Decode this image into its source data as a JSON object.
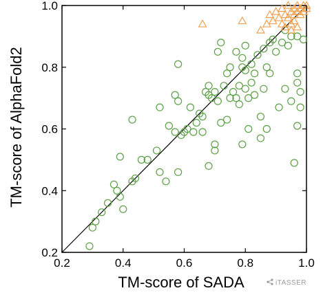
{
  "chart_data": {
    "type": "scatter",
    "xlabel": "TM-score of SADA",
    "ylabel": "TM-score of AlphaFold2",
    "xlim": [
      0.2,
      1.0
    ],
    "ylim": [
      0.2,
      1.0
    ],
    "xticks": [
      "0.2",
      "0.4",
      "0.6",
      "0.8",
      "1.0"
    ],
    "yticks": [
      "0.2",
      "0.4",
      "0.6",
      "0.8",
      "1.0"
    ],
    "diagonal_line": true,
    "grid": false,
    "legend": "none",
    "colors": {
      "green_series": "#5aa044",
      "orange_series": "#f0a050"
    },
    "series": [
      {
        "marker": "circle",
        "color": "#5aa044",
        "points": [
          [
            0.29,
            0.22
          ],
          [
            0.3,
            0.28
          ],
          [
            0.31,
            0.3
          ],
          [
            0.33,
            0.33
          ],
          [
            0.35,
            0.36
          ],
          [
            0.37,
            0.42
          ],
          [
            0.38,
            0.4
          ],
          [
            0.39,
            0.51
          ],
          [
            0.39,
            0.38
          ],
          [
            0.4,
            0.34
          ],
          [
            0.43,
            0.43
          ],
          [
            0.43,
            0.63
          ],
          [
            0.44,
            0.44
          ],
          [
            0.46,
            0.5
          ],
          [
            0.48,
            0.5
          ],
          [
            0.51,
            0.53
          ],
          [
            0.52,
            0.46
          ],
          [
            0.52,
            0.67
          ],
          [
            0.54,
            0.43
          ],
          [
            0.55,
            0.61
          ],
          [
            0.57,
            0.71
          ],
          [
            0.57,
            0.59
          ],
          [
            0.58,
            0.81
          ],
          [
            0.58,
            0.69
          ],
          [
            0.58,
            0.46
          ],
          [
            0.59,
            0.58
          ],
          [
            0.6,
            0.59
          ],
          [
            0.61,
            0.6
          ],
          [
            0.62,
            0.67
          ],
          [
            0.63,
            0.59
          ],
          [
            0.64,
            0.62
          ],
          [
            0.65,
            0.65
          ],
          [
            0.66,
            0.64
          ],
          [
            0.66,
            0.59
          ],
          [
            0.67,
            0.72
          ],
          [
            0.68,
            0.71
          ],
          [
            0.68,
            0.74
          ],
          [
            0.68,
            0.48
          ],
          [
            0.69,
            0.7
          ],
          [
            0.7,
            0.53
          ],
          [
            0.7,
            0.55
          ],
          [
            0.7,
            0.72
          ],
          [
            0.71,
            0.69
          ],
          [
            0.71,
            0.85
          ],
          [
            0.72,
            0.62
          ],
          [
            0.72,
            0.88
          ],
          [
            0.73,
            0.74
          ],
          [
            0.74,
            0.78
          ],
          [
            0.74,
            0.63
          ],
          [
            0.75,
            0.8
          ],
          [
            0.75,
            0.7
          ],
          [
            0.76,
            0.72
          ],
          [
            0.77,
            0.7
          ],
          [
            0.77,
            0.85
          ],
          [
            0.78,
            0.74
          ],
          [
            0.78,
            0.68
          ],
          [
            0.79,
            0.8
          ],
          [
            0.79,
            0.83
          ],
          [
            0.79,
            0.55
          ],
          [
            0.8,
            0.73
          ],
          [
            0.8,
            0.79
          ],
          [
            0.8,
            0.87
          ],
          [
            0.81,
            0.7
          ],
          [
            0.81,
            0.6
          ],
          [
            0.82,
            0.75
          ],
          [
            0.82,
            0.81
          ],
          [
            0.83,
            0.78
          ],
          [
            0.83,
            0.71
          ],
          [
            0.84,
            0.84
          ],
          [
            0.85,
            0.57
          ],
          [
            0.85,
            0.64
          ],
          [
            0.86,
            0.73
          ],
          [
            0.86,
            0.86
          ],
          [
            0.87,
            0.6
          ],
          [
            0.87,
            0.8
          ],
          [
            0.88,
            0.78
          ],
          [
            0.88,
            0.88
          ],
          [
            0.89,
            0.89
          ],
          [
            0.9,
            0.85
          ],
          [
            0.91,
            0.67
          ],
          [
            0.92,
            0.88
          ],
          [
            0.93,
            0.92
          ],
          [
            0.93,
            0.73
          ],
          [
            0.94,
            0.87
          ],
          [
            0.95,
            0.69
          ],
          [
            0.95,
            0.9
          ],
          [
            0.96,
            0.49
          ],
          [
            0.97,
            0.75
          ],
          [
            0.97,
            0.78
          ],
          [
            0.97,
            0.9
          ],
          [
            0.97,
            0.61
          ],
          [
            0.98,
            0.67
          ],
          [
            0.98,
            0.72
          ],
          [
            0.99,
            0.89
          ]
        ]
      },
      {
        "marker": "triangle",
        "color": "#f0a050",
        "points": [
          [
            0.66,
            0.94
          ],
          [
            0.79,
            0.95
          ],
          [
            0.85,
            0.92
          ],
          [
            0.87,
            0.94
          ],
          [
            0.88,
            0.97
          ],
          [
            0.89,
            0.95
          ],
          [
            0.9,
            0.98
          ],
          [
            0.91,
            0.96
          ],
          [
            0.92,
            0.94
          ],
          [
            0.92,
            0.99
          ],
          [
            0.93,
            0.97
          ],
          [
            0.93,
            0.93
          ],
          [
            0.94,
            1.0
          ],
          [
            0.94,
            0.96
          ],
          [
            0.95,
            0.98
          ],
          [
            0.95,
            0.94
          ],
          [
            0.96,
            0.99
          ],
          [
            0.96,
            0.97
          ],
          [
            0.96,
            0.95
          ],
          [
            0.97,
            0.98
          ],
          [
            0.97,
            1.0
          ],
          [
            0.98,
            0.99
          ],
          [
            0.98,
            0.97
          ],
          [
            0.99,
            1.0
          ],
          [
            0.99,
            0.98
          ],
          [
            1.0,
            0.99
          ],
          [
            1.0,
            1.0
          ],
          [
            0.97,
            0.93
          ],
          [
            0.95,
            0.92
          ]
        ]
      }
    ]
  },
  "watermark": {
    "text": "iTASSER",
    "icon": "share-icon"
  }
}
